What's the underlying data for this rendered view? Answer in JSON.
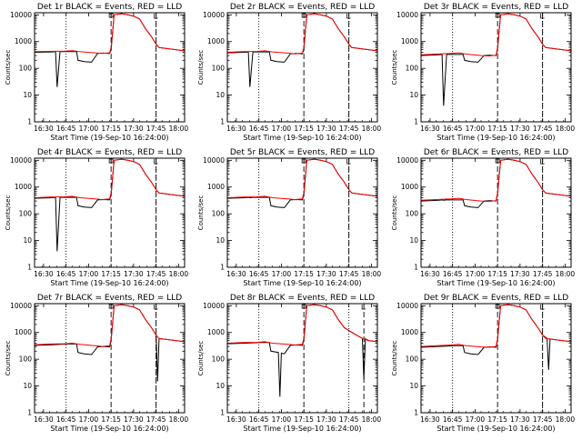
{
  "layout": {
    "rows": 3,
    "cols": 3
  },
  "shared": {
    "xlabel": "Start Time (19-Sep-10 16:24:00)",
    "ylabel": "Counts/sec",
    "x_ticks": [
      "16:30",
      "16:45",
      "17:00",
      "17:15",
      "17:30",
      "17:45",
      "18:00"
    ],
    "x_tick_values": [
      6,
      21,
      36,
      51,
      66,
      81,
      96
    ],
    "xlim": [
      0,
      100
    ],
    "y_ticks": [
      "1",
      "10",
      "100",
      "1000",
      "10000"
    ],
    "y_tick_values": [
      1,
      10,
      100,
      1000,
      10000
    ],
    "ylim": [
      1,
      12000
    ],
    "y_scale": "log",
    "dotted_lines_x": [
      21,
      81
    ],
    "dashed_lines_x": [
      51
    ],
    "colors": {
      "events": "#000000",
      "lld": "#ff0000",
      "axes": "#000000"
    }
  },
  "chart_data": [
    {
      "type": "line",
      "title": "Det 1r BLACK = Events, RED = LLD",
      "dashed2": 81,
      "series": [
        {
          "name": "Events",
          "x": [
            0,
            12,
            14,
            15,
            17,
            22,
            28,
            29,
            33,
            38,
            42,
            46,
            50,
            51,
            53,
            58,
            62,
            66,
            70,
            74,
            78,
            81,
            83,
            88,
            94,
            100
          ],
          "y": [
            400,
            410,
            420,
            20,
            420,
            420,
            420,
            200,
            180,
            170,
            360,
            370,
            360,
            500,
            10000,
            11000,
            10000,
            9000,
            7000,
            3000,
            1500,
            800,
            600,
            550,
            500,
            450
          ]
        },
        {
          "name": "LLD",
          "x": [
            0,
            10,
            20,
            25,
            30,
            40,
            45,
            50,
            51,
            53,
            58,
            62,
            66,
            70,
            74,
            78,
            81,
            83,
            88,
            94,
            100
          ],
          "y": [
            420,
            430,
            440,
            460,
            420,
            380,
            360,
            380,
            600,
            10000,
            11000,
            10000,
            9000,
            7000,
            3000,
            1500,
            800,
            600,
            550,
            500,
            450
          ]
        }
      ]
    },
    {
      "type": "line",
      "title": "Det 2r BLACK = Events, RED = LLD",
      "dashed2": 81,
      "series": [
        {
          "name": "Events",
          "x": [
            0,
            12,
            14,
            15,
            17,
            22,
            28,
            29,
            33,
            38,
            42,
            46,
            50,
            51,
            53,
            58,
            62,
            66,
            70,
            74,
            78,
            81,
            83,
            88,
            94,
            100
          ],
          "y": [
            380,
            400,
            410,
            20,
            410,
            410,
            410,
            200,
            180,
            170,
            350,
            360,
            350,
            500,
            10000,
            11000,
            10000,
            9000,
            7000,
            3000,
            1500,
            800,
            600,
            550,
            500,
            450
          ]
        },
        {
          "name": "LLD",
          "x": [
            0,
            10,
            20,
            25,
            30,
            40,
            45,
            50,
            51,
            53,
            58,
            62,
            66,
            70,
            74,
            78,
            81,
            83,
            88,
            94,
            100
          ],
          "y": [
            400,
            420,
            430,
            450,
            410,
            370,
            350,
            370,
            600,
            10000,
            11000,
            10000,
            9000,
            7000,
            3000,
            1500,
            800,
            600,
            550,
            500,
            450
          ]
        }
      ]
    },
    {
      "type": "line",
      "title": "Det 3r BLACK = Events, RED = LLD",
      "dashed2": 81,
      "series": [
        {
          "name": "Events",
          "x": [
            0,
            12,
            14,
            15,
            17,
            22,
            28,
            29,
            33,
            38,
            42,
            46,
            50,
            51,
            53,
            58,
            62,
            66,
            70,
            74,
            78,
            81,
            83,
            88,
            94,
            100
          ],
          "y": [
            300,
            320,
            330,
            4,
            330,
            330,
            330,
            200,
            180,
            170,
            300,
            310,
            300,
            500,
            10000,
            11000,
            10000,
            9000,
            7000,
            3000,
            1500,
            800,
            600,
            550,
            500,
            450
          ]
        },
        {
          "name": "LLD",
          "x": [
            0,
            10,
            20,
            25,
            30,
            40,
            45,
            50,
            51,
            53,
            58,
            62,
            66,
            70,
            74,
            78,
            81,
            83,
            88,
            94,
            100
          ],
          "y": [
            320,
            340,
            360,
            380,
            340,
            300,
            290,
            310,
            600,
            10000,
            11000,
            10000,
            9000,
            7000,
            3000,
            1500,
            800,
            600,
            550,
            500,
            450
          ]
        }
      ]
    },
    {
      "type": "line",
      "title": "Det 4r BLACK = Events, RED = LLD",
      "dashed2": 81,
      "series": [
        {
          "name": "Events",
          "x": [
            0,
            12,
            14,
            15,
            17,
            22,
            28,
            29,
            33,
            38,
            42,
            46,
            50,
            51,
            53,
            58,
            62,
            66,
            70,
            74,
            78,
            81,
            83,
            88,
            94,
            100
          ],
          "y": [
            380,
            400,
            410,
            4,
            410,
            410,
            410,
            200,
            180,
            170,
            330,
            340,
            330,
            500,
            10000,
            11000,
            10000,
            9000,
            7000,
            3000,
            1500,
            800,
            600,
            550,
            500,
            450
          ]
        },
        {
          "name": "LLD",
          "x": [
            0,
            10,
            20,
            25,
            30,
            40,
            45,
            50,
            51,
            53,
            58,
            62,
            66,
            70,
            74,
            78,
            81,
            83,
            88,
            94,
            100
          ],
          "y": [
            400,
            420,
            430,
            450,
            400,
            360,
            340,
            360,
            600,
            10000,
            11000,
            10000,
            9000,
            7000,
            3000,
            1500,
            800,
            600,
            550,
            500,
            450
          ]
        }
      ]
    },
    {
      "type": "line",
      "title": "Det 5r BLACK = Events, RED = LLD",
      "dashed2": 81,
      "series": [
        {
          "name": "Events",
          "x": [
            0,
            12,
            14,
            15,
            17,
            22,
            28,
            29,
            33,
            38,
            42,
            46,
            50,
            51,
            53,
            58,
            62,
            66,
            70,
            74,
            78,
            81,
            83,
            88,
            94,
            100
          ],
          "y": [
            380,
            400,
            410,
            400,
            410,
            410,
            410,
            200,
            180,
            170,
            330,
            340,
            330,
            500,
            10000,
            11000,
            10000,
            9000,
            7000,
            3000,
            1500,
            800,
            600,
            550,
            500,
            450
          ]
        },
        {
          "name": "LLD",
          "x": [
            0,
            10,
            20,
            25,
            30,
            40,
            45,
            50,
            51,
            53,
            58,
            62,
            66,
            70,
            74,
            78,
            81,
            83,
            88,
            94,
            100
          ],
          "y": [
            400,
            420,
            430,
            450,
            400,
            360,
            340,
            360,
            600,
            10000,
            11000,
            10000,
            9000,
            7000,
            3000,
            1500,
            800,
            600,
            550,
            500,
            450
          ]
        }
      ]
    },
    {
      "type": "line",
      "title": "Det 6r BLACK = Events, RED = LLD",
      "dashed2": 81,
      "series": [
        {
          "name": "Events",
          "x": [
            0,
            12,
            14,
            15,
            17,
            22,
            28,
            29,
            33,
            38,
            42,
            46,
            50,
            51,
            53,
            58,
            62,
            66,
            70,
            74,
            78,
            81,
            83,
            88,
            94,
            100
          ],
          "y": [
            300,
            320,
            330,
            320,
            330,
            330,
            330,
            200,
            180,
            170,
            300,
            310,
            300,
            500,
            10000,
            11000,
            10000,
            9000,
            7000,
            3000,
            1500,
            800,
            600,
            550,
            500,
            450
          ]
        },
        {
          "name": "LLD",
          "x": [
            0,
            10,
            20,
            25,
            30,
            40,
            45,
            50,
            51,
            53,
            58,
            62,
            66,
            70,
            74,
            78,
            81,
            83,
            88,
            94,
            100
          ],
          "y": [
            320,
            340,
            360,
            380,
            340,
            300,
            290,
            310,
            600,
            10000,
            11000,
            10000,
            9000,
            7000,
            3000,
            1500,
            800,
            600,
            550,
            500,
            450
          ]
        }
      ]
    },
    {
      "type": "line",
      "title": "Det 7r BLACK = Events, RED = LLD",
      "dashed2": 81,
      "series": [
        {
          "name": "Events",
          "x": [
            0,
            12,
            17,
            22,
            28,
            29,
            33,
            38,
            42,
            46,
            50,
            51,
            53,
            58,
            62,
            66,
            70,
            74,
            78,
            81,
            82,
            83,
            84,
            88,
            94,
            100
          ],
          "y": [
            330,
            350,
            360,
            370,
            370,
            180,
            160,
            150,
            290,
            300,
            290,
            500,
            10000,
            11000,
            10000,
            9000,
            7000,
            3000,
            1500,
            800,
            15,
            600,
            580,
            550,
            500,
            450
          ]
        },
        {
          "name": "LLD",
          "x": [
            0,
            10,
            20,
            25,
            30,
            40,
            45,
            50,
            51,
            53,
            58,
            62,
            66,
            70,
            74,
            78,
            81,
            83,
            88,
            94,
            100
          ],
          "y": [
            350,
            370,
            380,
            400,
            360,
            320,
            300,
            320,
            600,
            10000,
            11000,
            10000,
            9000,
            7000,
            3000,
            1500,
            800,
            600,
            550,
            500,
            450
          ]
        }
      ]
    },
    {
      "type": "line",
      "title": "Det 8r BLACK = Events, RED = LLD",
      "dashed2": 91,
      "series": [
        {
          "name": "Events",
          "x": [
            0,
            12,
            17,
            22,
            28,
            29,
            34,
            35,
            36,
            38,
            42,
            46,
            50,
            51,
            53,
            58,
            62,
            66,
            70,
            74,
            78,
            86,
            90,
            91,
            92,
            94,
            100
          ],
          "y": [
            380,
            400,
            410,
            420,
            420,
            200,
            180,
            4,
            170,
            160,
            330,
            340,
            330,
            500,
            10000,
            11000,
            10000,
            9000,
            7000,
            3000,
            1500,
            800,
            600,
            18,
            580,
            500,
            450
          ]
        },
        {
          "name": "LLD",
          "x": [
            0,
            10,
            20,
            25,
            30,
            40,
            45,
            50,
            51,
            53,
            58,
            62,
            66,
            70,
            74,
            78,
            86,
            90,
            94,
            100
          ],
          "y": [
            400,
            420,
            430,
            450,
            400,
            360,
            340,
            360,
            600,
            10000,
            11000,
            10000,
            9000,
            7000,
            3000,
            1500,
            800,
            600,
            500,
            450
          ]
        }
      ]
    },
    {
      "type": "line",
      "title": "Det 9r BLACK = Events, RED = LLD",
      "dashed2": 81,
      "series": [
        {
          "name": "Events",
          "x": [
            0,
            12,
            17,
            22,
            28,
            29,
            33,
            38,
            42,
            46,
            50,
            51,
            53,
            58,
            62,
            66,
            70,
            74,
            78,
            81,
            84,
            85,
            86,
            88,
            94,
            100
          ],
          "y": [
            280,
            300,
            310,
            320,
            320,
            180,
            160,
            150,
            280,
            290,
            280,
            500,
            10000,
            11000,
            10000,
            9000,
            7000,
            3000,
            1500,
            800,
            600,
            40,
            580,
            550,
            500,
            450
          ]
        },
        {
          "name": "LLD",
          "x": [
            0,
            10,
            20,
            25,
            30,
            40,
            45,
            50,
            51,
            53,
            58,
            62,
            66,
            70,
            74,
            78,
            81,
            83,
            88,
            94,
            100
          ],
          "y": [
            300,
            320,
            340,
            360,
            320,
            290,
            280,
            300,
            600,
            10000,
            11000,
            10000,
            9000,
            7000,
            3000,
            1500,
            800,
            600,
            550,
            500,
            450
          ]
        }
      ]
    }
  ]
}
